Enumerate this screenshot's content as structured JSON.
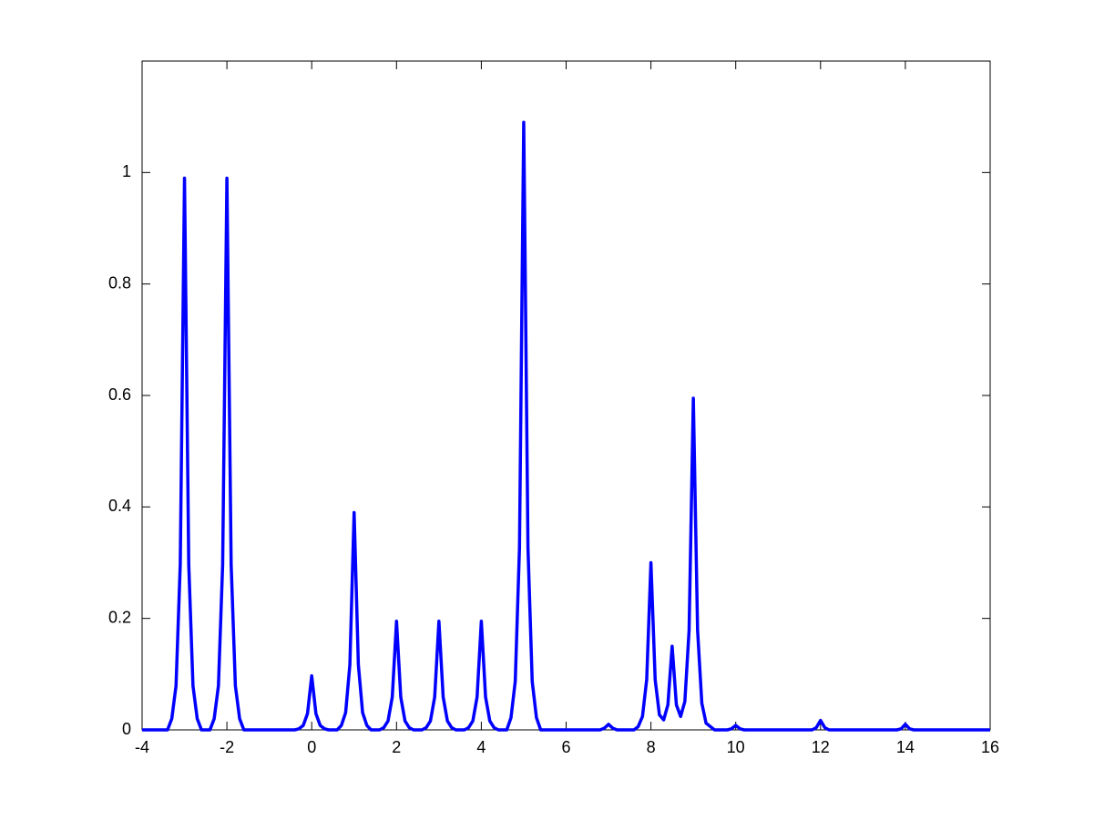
{
  "chart_data": {
    "type": "line",
    "x": [
      -4,
      -3.4,
      -3.3,
      -3.2,
      -3.1,
      -3.05,
      -3,
      -2.95,
      -2.9,
      -2.8,
      -2.7,
      -2.6,
      -2.4,
      -2.3,
      -2.2,
      -2.1,
      -2.05,
      -2,
      -1.95,
      -1.9,
      -1.8,
      -1.7,
      -1.6,
      -0.4,
      -0.3,
      -0.2,
      -0.1,
      -0.05,
      0,
      0.05,
      0.1,
      0.2,
      0.3,
      0.4,
      0.6,
      0.7,
      0.8,
      0.9,
      0.95,
      1,
      1.05,
      1.1,
      1.2,
      1.3,
      1.4,
      1.6,
      1.7,
      1.8,
      1.9,
      1.95,
      2,
      2.05,
      2.1,
      2.2,
      2.3,
      2.4,
      2.6,
      2.7,
      2.8,
      2.9,
      2.95,
      3,
      3.05,
      3.1,
      3.2,
      3.3,
      3.4,
      3.6,
      3.7,
      3.8,
      3.9,
      3.95,
      4,
      4.05,
      4.1,
      4.2,
      4.3,
      4.4,
      4.6,
      4.7,
      4.8,
      4.9,
      4.95,
      5,
      5.05,
      5.1,
      5.2,
      5.3,
      5.4,
      6.8,
      6.9,
      7,
      7.1,
      7.2,
      7.6,
      7.7,
      7.8,
      7.9,
      7.95,
      8,
      8.05,
      8.1,
      8.2,
      8.3,
      8.4,
      8.45,
      8.5,
      8.55,
      8.6,
      8.7,
      8.8,
      8.9,
      8.95,
      9,
      9.05,
      9.1,
      9.2,
      9.3,
      9.5,
      9.8,
      9.9,
      10,
      10.1,
      10.2,
      11.8,
      11.9,
      12,
      12.1,
      12.2,
      13.8,
      13.9,
      14,
      14.1,
      14.2,
      16
    ],
    "series": [
      {
        "color": "#0000ff",
        "values": [
          0,
          0,
          0.02,
          0.079,
          0.297,
          0.644,
          0.99,
          0.644,
          0.297,
          0.079,
          0.02,
          0,
          0,
          0.02,
          0.079,
          0.297,
          0.644,
          0.99,
          0.644,
          0.297,
          0.079,
          0.02,
          0,
          0,
          0.002,
          0.008,
          0.029,
          0.063,
          0.097,
          0.063,
          0.029,
          0.008,
          0.002,
          0,
          0,
          0.008,
          0.031,
          0.117,
          0.254,
          0.39,
          0.254,
          0.117,
          0.031,
          0.008,
          0,
          0,
          0.004,
          0.016,
          0.059,
          0.127,
          0.195,
          0.127,
          0.059,
          0.016,
          0.004,
          0,
          0,
          0.004,
          0.016,
          0.059,
          0.127,
          0.195,
          0.127,
          0.059,
          0.016,
          0.004,
          0,
          0,
          0.004,
          0.016,
          0.059,
          0.127,
          0.195,
          0.127,
          0.059,
          0.016,
          0.004,
          0,
          0,
          0.022,
          0.087,
          0.327,
          0.709,
          1.09,
          0.709,
          0.327,
          0.087,
          0.022,
          0,
          0,
          0.003,
          0.01,
          0.003,
          0,
          0,
          0.006,
          0.024,
          0.09,
          0.195,
          0.3,
          0.195,
          0.09,
          0.027,
          0.018,
          0.045,
          0.098,
          0.15,
          0.098,
          0.045,
          0.024,
          0.051,
          0.179,
          0.387,
          0.595,
          0.387,
          0.179,
          0.048,
          0.012,
          0,
          0,
          0.002,
          0.008,
          0.002,
          0,
          0,
          0.004,
          0.017,
          0.004,
          0,
          0,
          0.002,
          0.01,
          0.002,
          0,
          0
        ]
      }
    ],
    "xlim": [
      -4,
      16
    ],
    "xticks": [
      -4,
      -2,
      0,
      2,
      4,
      6,
      8,
      10,
      12,
      14,
      16
    ],
    "ylim": [
      0,
      1.2
    ],
    "yticks": [
      0,
      0.2,
      0.4,
      0.6,
      0.8,
      1
    ],
    "grid": false
  }
}
